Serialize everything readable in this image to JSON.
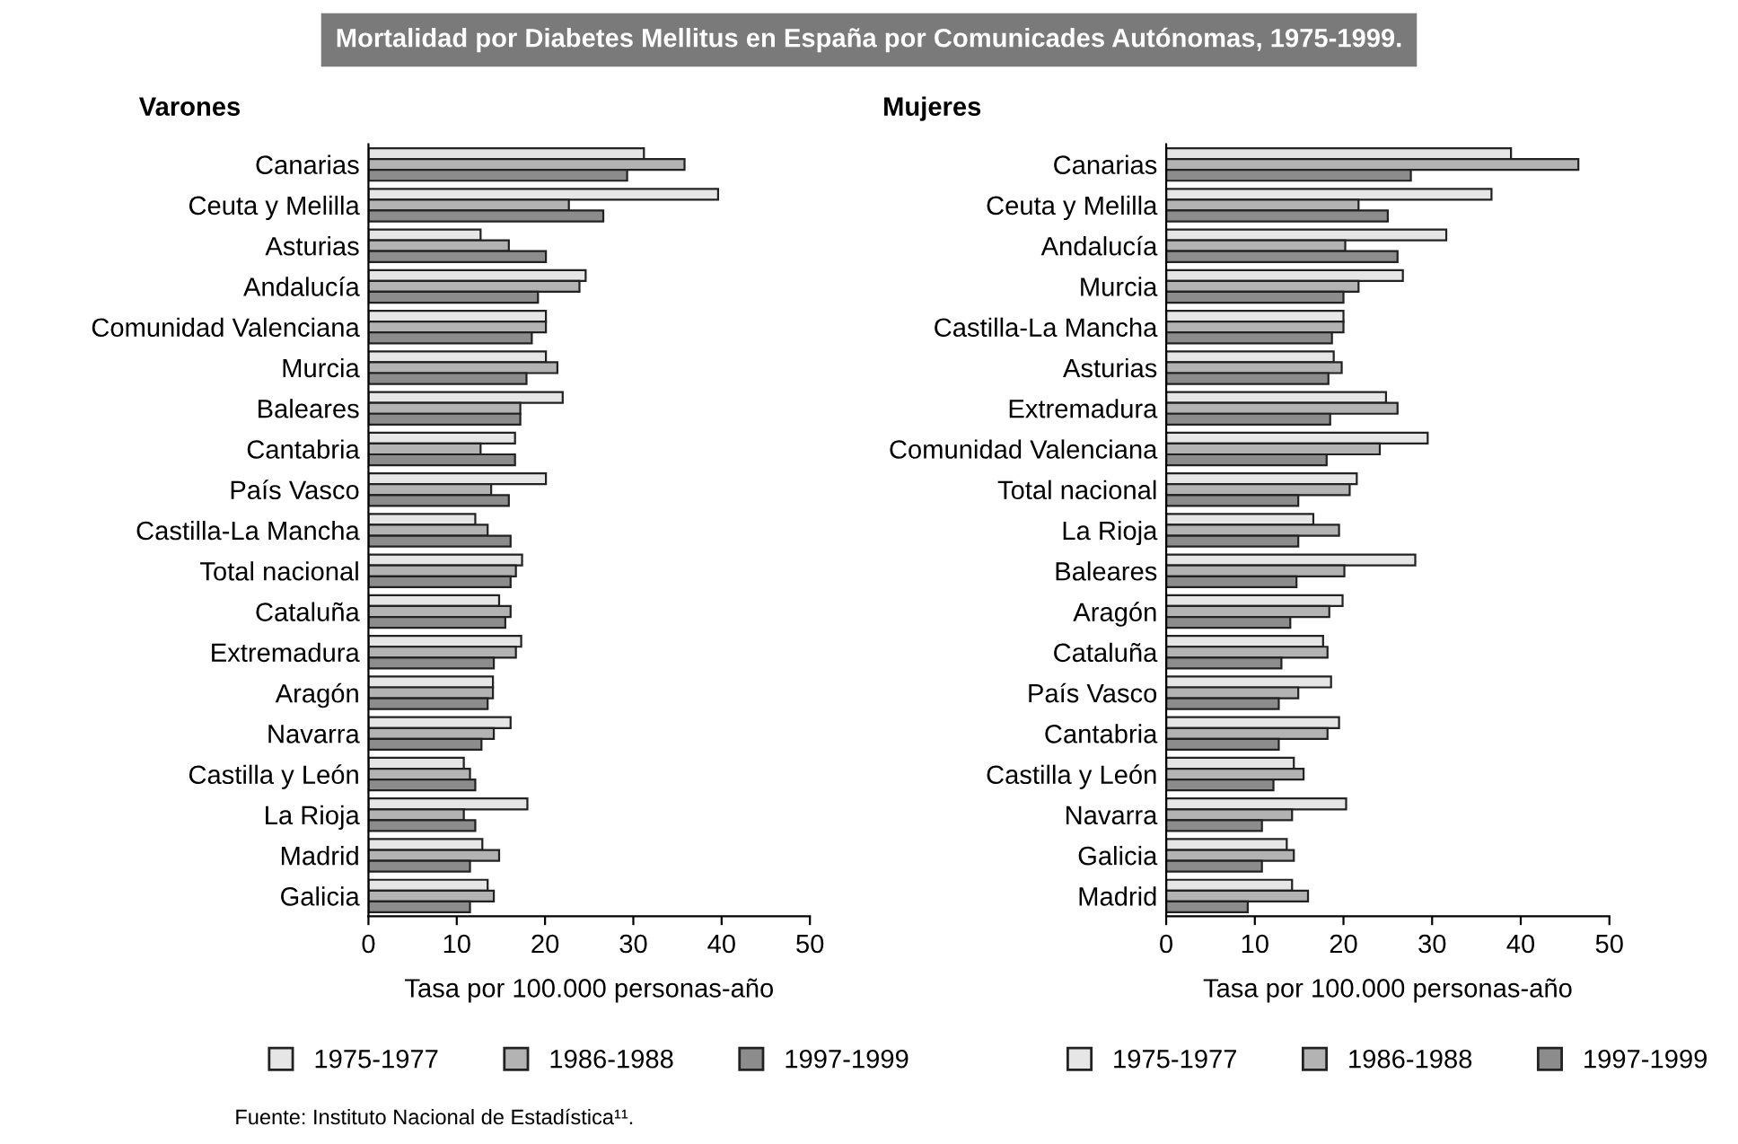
{
  "chart_data": [
    {
      "type": "bar",
      "orientation": "horizontal",
      "title": "Mortalidad por Diabetes Mellitus en España por Comunicades Autónomas, 1975-1999.",
      "subtitle": "Varones",
      "xlabel": "Tasa por 100.000 personas-año",
      "categories": [
        "Canarias",
        "Ceuta y Melilla",
        "Asturias",
        "Andalucía",
        "Comunidad Valenciana",
        "Murcia",
        "Baleares",
        "Cantabria",
        "País Vasco",
        "Castilla-La Mancha",
        "Total nacional",
        "Cataluña",
        "Extremadura",
        "Aragón",
        "Navarra",
        "Castilla y León",
        "La Rioja",
        "Madrid",
        "Galicia"
      ],
      "series": [
        {
          "name": "1975-1977",
          "color": "#e6e6e6",
          "values": [
            31.2,
            39.6,
            12.7,
            24.6,
            20.1,
            20.1,
            22.0,
            16.6,
            20.1,
            12.1,
            17.4,
            14.8,
            17.3,
            14.1,
            16.1,
            10.8,
            18.0,
            12.9,
            13.5
          ]
        },
        {
          "name": "1986-1988",
          "color": "#b3b3b3",
          "values": [
            35.8,
            22.7,
            15.9,
            23.9,
            20.1,
            21.4,
            17.2,
            12.7,
            13.9,
            13.5,
            16.7,
            16.1,
            16.7,
            14.1,
            14.2,
            11.5,
            10.8,
            14.8,
            14.2
          ]
        },
        {
          "name": "1997-1999",
          "color": "#8c8c8c",
          "values": [
            29.3,
            26.6,
            20.1,
            19.2,
            18.5,
            17.9,
            17.2,
            16.6,
            15.9,
            16.1,
            16.1,
            15.5,
            14.2,
            13.5,
            12.8,
            12.1,
            12.1,
            11.5,
            11.5
          ]
        }
      ],
      "xlim": [
        0,
        50
      ],
      "xticks": [
        0,
        10,
        20,
        30,
        40,
        50
      ],
      "grid": false,
      "legend": "bottom",
      "annotations": [
        "Fuente: Instituto Nacional de Estadística¹¹."
      ]
    },
    {
      "type": "bar",
      "orientation": "horizontal",
      "subtitle": "Mujeres",
      "xlabel": "Tasa por 100.000 personas-año",
      "categories": [
        "Canarias",
        "Ceuta y Melilla",
        "Andalucía",
        "Murcia",
        "Castilla-La Mancha",
        "Asturias",
        "Extremadura",
        "Comunidad Valenciana",
        "Total nacional",
        "La Rioja",
        "Baleares",
        "Aragón",
        "Cataluña",
        "País Vasco",
        "Cantabria",
        "Castilla y León",
        "Navarra",
        "Galicia",
        "Madrid"
      ],
      "series": [
        {
          "name": "1975-1977",
          "color": "#e6e6e6",
          "values": [
            38.9,
            36.7,
            31.6,
            26.7,
            20.0,
            18.9,
            24.8,
            29.5,
            21.5,
            16.6,
            28.1,
            19.9,
            17.7,
            18.6,
            19.5,
            14.4,
            20.3,
            13.6,
            14.2
          ]
        },
        {
          "name": "1986-1988",
          "color": "#b3b3b3",
          "values": [
            46.5,
            21.7,
            20.2,
            21.7,
            20.0,
            19.8,
            26.1,
            24.1,
            20.7,
            19.5,
            20.1,
            18.4,
            18.2,
            14.9,
            18.2,
            15.5,
            14.2,
            14.4,
            16.0
          ]
        },
        {
          "name": "1997-1999",
          "color": "#8c8c8c",
          "values": [
            27.6,
            25.0,
            26.1,
            20.0,
            18.7,
            18.3,
            18.5,
            18.1,
            14.9,
            14.9,
            14.7,
            14.0,
            13.0,
            12.7,
            12.7,
            12.1,
            10.8,
            10.8,
            9.2
          ]
        }
      ],
      "xlim": [
        0,
        50
      ],
      "xticks": [
        0,
        10,
        20,
        30,
        40,
        50
      ],
      "grid": false,
      "legend": "bottom"
    }
  ]
}
